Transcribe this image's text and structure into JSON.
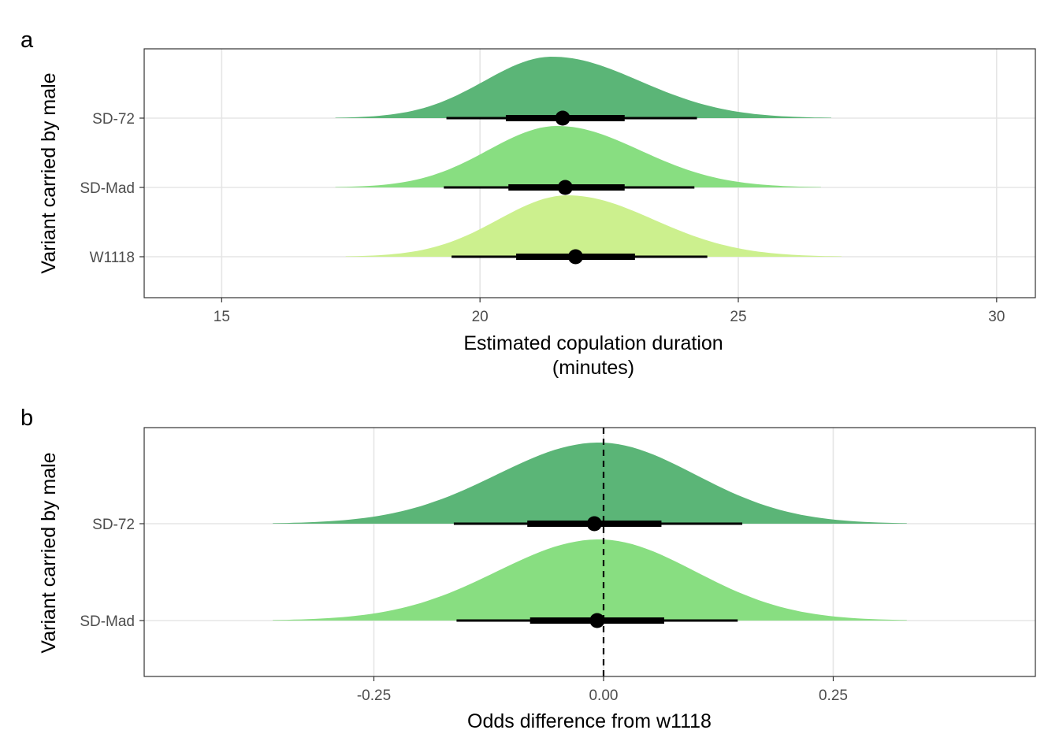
{
  "colors": {
    "dark_green": "#5BB577",
    "mid_green": "#88DE81",
    "light_green": "#CCF08E",
    "interval": "#000000",
    "grid": "#E5E5E5",
    "panel_border": "#333333"
  },
  "chart_data": [
    {
      "panel_label": "a",
      "type": "halfeye",
      "xlabel": [
        "Estimated copulation duration",
        "(minutes)"
      ],
      "ylabel": "Variant carried by male",
      "xlim": [
        13.5,
        30.75
      ],
      "xticks": [
        15,
        20,
        25,
        30
      ],
      "xtick_labels": [
        "15",
        "20",
        "25",
        "30"
      ],
      "reference_line": null,
      "grid": true,
      "series": [
        {
          "name": "SD-72",
          "color": "dark_green",
          "median": 21.6,
          "interval_66": [
            20.5,
            22.8
          ],
          "interval_95": [
            19.35,
            24.2
          ],
          "density_range": [
            17.2,
            26.8
          ],
          "density_peak": 21.4
        },
        {
          "name": "SD-Mad",
          "color": "mid_green",
          "median": 21.65,
          "interval_66": [
            20.55,
            22.8
          ],
          "interval_95": [
            19.3,
            24.15
          ],
          "density_range": [
            17.2,
            26.6
          ],
          "density_peak": 21.5
        },
        {
          "name": "W1118",
          "color": "light_green",
          "median": 21.85,
          "interval_66": [
            20.7,
            23.0
          ],
          "interval_95": [
            19.45,
            24.4
          ],
          "density_range": [
            17.4,
            27.0
          ],
          "density_peak": 21.7
        }
      ]
    },
    {
      "panel_label": "b",
      "type": "halfeye",
      "xlabel": [
        "Odds difference from w1118"
      ],
      "ylabel": "Variant carried by male",
      "xlim": [
        -0.5,
        0.47
      ],
      "xticks": [
        -0.25,
        0.0,
        0.25
      ],
      "xtick_labels": [
        "-0.25",
        "0.00",
        "0.25"
      ],
      "reference_line": 0.0,
      "grid": true,
      "series": [
        {
          "name": "SD-72",
          "color": "dark_green",
          "median": -0.01,
          "interval_66": [
            -0.083,
            0.063
          ],
          "interval_95": [
            -0.163,
            0.151
          ],
          "density_range": [
            -0.36,
            0.33
          ],
          "density_peak": -0.005
        },
        {
          "name": "SD-Mad",
          "color": "mid_green",
          "median": -0.007,
          "interval_66": [
            -0.08,
            0.066
          ],
          "interval_95": [
            -0.16,
            0.146
          ],
          "density_range": [
            -0.36,
            0.33
          ],
          "density_peak": -0.005
        }
      ]
    }
  ]
}
